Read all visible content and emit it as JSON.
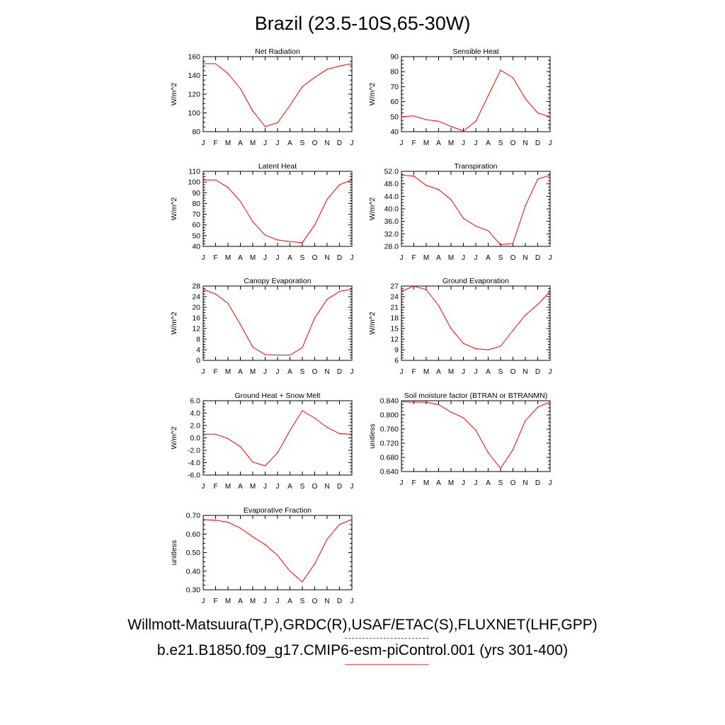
{
  "figure": {
    "title": "Brazil (23.5-10S,65-30W)",
    "legend": {
      "observed_label": "Willmott-Matsuura(T,P),GRDC(R),USAF/ETAC(S),FLUXNET(LHF,GPP)",
      "model_label": "b.e21.B1850.f09_g17.CMIP6-esm-piControl.001 (yrs 301-400)",
      "observed_color": "#4b4bff",
      "model_color": "#ff0000"
    }
  },
  "chart_data": [
    {
      "type": "line",
      "title": "Net Radiation",
      "ylabel": "W/m^2",
      "categories": [
        "J",
        "F",
        "M",
        "A",
        "M",
        "J",
        "J",
        "A",
        "S",
        "O",
        "N",
        "D",
        "J"
      ],
      "ylim": [
        80,
        160
      ],
      "yticks": [
        "80",
        "100",
        "120",
        "140",
        "160"
      ],
      "series": [
        {
          "color": "#ff0000",
          "values": [
            152.5,
            152.5,
            142,
            126,
            102,
            85.5,
            89.5,
            108,
            128,
            138,
            146.5,
            150,
            152.5
          ]
        }
      ]
    },
    {
      "type": "line",
      "title": "Sensible Heat",
      "ylabel": "W/m^2",
      "categories": [
        "J",
        "F",
        "M",
        "A",
        "M",
        "J",
        "J",
        "A",
        "S",
        "O",
        "N",
        "D",
        "J"
      ],
      "ylim": [
        40,
        90
      ],
      "yticks": [
        "40",
        "50",
        "60",
        "70",
        "80",
        "90"
      ],
      "series": [
        {
          "color": "#ff0000",
          "values": [
            50,
            50.5,
            48,
            47,
            43.5,
            40.5,
            47,
            64,
            81,
            76,
            62,
            52.5,
            50
          ]
        }
      ]
    },
    {
      "type": "line",
      "title": "Latent Heat",
      "ylabel": "W/m^2",
      "categories": [
        "J",
        "F",
        "M",
        "A",
        "M",
        "J",
        "J",
        "A",
        "S",
        "O",
        "N",
        "D",
        "J"
      ],
      "ylim": [
        40,
        110
      ],
      "yticks": [
        "40",
        "50",
        "60",
        "70",
        "80",
        "90",
        "100",
        "110"
      ],
      "series": [
        {
          "color": "#ff0000",
          "values": [
            102,
            102,
            95,
            82,
            63,
            50.5,
            46,
            44.5,
            43.5,
            60,
            84,
            97.5,
            102
          ]
        }
      ]
    },
    {
      "type": "line",
      "title": "Transpiration",
      "ylabel": "W/m^2",
      "categories": [
        "J",
        "F",
        "M",
        "A",
        "M",
        "J",
        "J",
        "A",
        "S",
        "O",
        "N",
        "D",
        "J"
      ],
      "ylim": [
        28,
        52
      ],
      "yticks": [
        "28.0",
        "32.0",
        "36.0",
        "40.0",
        "44.0",
        "48.0",
        "52.0"
      ],
      "series": [
        {
          "color": "#ff0000",
          "values": [
            50.8,
            50.5,
            47.5,
            46.2,
            43,
            37,
            34.5,
            33,
            28.5,
            29,
            41,
            49.5,
            50.8
          ]
        }
      ]
    },
    {
      "type": "line",
      "title": "Canopy Evaporation",
      "ylabel": "W/m^2",
      "categories": [
        "J",
        "F",
        "M",
        "A",
        "M",
        "J",
        "J",
        "A",
        "S",
        "O",
        "N",
        "D",
        "J"
      ],
      "ylim": [
        0,
        28
      ],
      "yticks": [
        "0",
        "4",
        "8",
        "12",
        "16",
        "20",
        "24",
        "28"
      ],
      "series": [
        {
          "color": "#ff0000",
          "values": [
            26.8,
            25,
            21.5,
            13.5,
            5,
            2.2,
            2,
            2,
            4.8,
            16,
            23,
            26,
            26.8
          ]
        }
      ]
    },
    {
      "type": "line",
      "title": "Ground Evaporation",
      "ylabel": "W/m^2",
      "categories": [
        "J",
        "F",
        "M",
        "A",
        "M",
        "J",
        "J",
        "A",
        "S",
        "O",
        "N",
        "D",
        "J"
      ],
      "ylim": [
        6,
        27
      ],
      "yticks": [
        "6",
        "9",
        "12",
        "15",
        "18",
        "21",
        "24",
        "27"
      ],
      "series": [
        {
          "color": "#ff0000",
          "values": [
            25.5,
            27,
            26,
            21.5,
            15,
            10.8,
            9.3,
            9,
            10,
            14.5,
            18.8,
            21.8,
            25.5
          ]
        }
      ]
    },
    {
      "type": "line",
      "title": "Ground Heat + Snow Melt",
      "ylabel": "W/m^2",
      "categories": [
        "J",
        "F",
        "M",
        "A",
        "M",
        "J",
        "J",
        "A",
        "S",
        "O",
        "N",
        "D",
        "J"
      ],
      "ylim": [
        -6,
        6
      ],
      "yticks": [
        "-6.0",
        "-4.0",
        "-2.0",
        "0.0",
        "2.0",
        "4.0",
        "6.0"
      ],
      "series": [
        {
          "color": "#ff0000",
          "values": [
            0.6,
            0.6,
            -0.1,
            -1.4,
            -3.9,
            -4.5,
            -2.4,
            1.2,
            4.4,
            3.2,
            1.7,
            0.7,
            0.6
          ]
        }
      ]
    },
    {
      "type": "line",
      "title": "Soil moisture factor (BTRAN or BTRANMN)",
      "ylabel": "unitless",
      "categories": [
        "J",
        "F",
        "M",
        "A",
        "M",
        "J",
        "J",
        "A",
        "S",
        "O",
        "N",
        "D",
        "J"
      ],
      "ylim": [
        0.64,
        0.84
      ],
      "yticks": [
        "0.640",
        "0.680",
        "0.720",
        "0.760",
        "0.800",
        "0.840"
      ],
      "series": [
        {
          "color": "#ff0000",
          "values": [
            0.837,
            0.836,
            0.836,
            0.829,
            0.808,
            0.792,
            0.757,
            0.693,
            0.649,
            0.702,
            0.784,
            0.822,
            0.837
          ]
        }
      ]
    },
    {
      "type": "line",
      "title": "Evaporative Fraction",
      "ylabel": "unitless",
      "categories": [
        "J",
        "F",
        "M",
        "A",
        "M",
        "J",
        "J",
        "A",
        "S",
        "O",
        "N",
        "D",
        "J"
      ],
      "ylim": [
        0.3,
        0.7
      ],
      "yticks": [
        "0.30",
        "0.40",
        "0.50",
        "0.60",
        "0.70"
      ],
      "series": [
        {
          "color": "#ff0000",
          "values": [
            0.678,
            0.674,
            0.664,
            0.632,
            0.585,
            0.543,
            0.485,
            0.4,
            0.343,
            0.44,
            0.572,
            0.652,
            0.678
          ]
        }
      ]
    }
  ]
}
